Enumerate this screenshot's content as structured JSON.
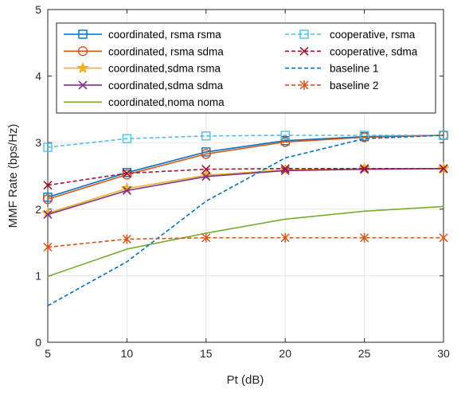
{
  "chart_data": {
    "type": "line",
    "xlabel": "Pt (dB)",
    "ylabel": "MMF Rate (bps/Hz)",
    "xlim": [
      5,
      30
    ],
    "ylim": [
      0,
      5
    ],
    "xticks": [
      5,
      10,
      15,
      20,
      25,
      30
    ],
    "yticks": [
      0,
      1,
      2,
      3,
      4,
      5
    ],
    "grid": true,
    "legend_placement": "top, two columns",
    "x": [
      5,
      10,
      15,
      20,
      25,
      30
    ],
    "series": [
      {
        "name": "coordinated, rsma rsma",
        "values": [
          2.18,
          2.55,
          2.86,
          3.03,
          3.09,
          3.11
        ],
        "color": "#0072BD",
        "dash": "solid",
        "marker": "square"
      },
      {
        "name": "coordinated, rsma sdma",
        "values": [
          2.15,
          2.52,
          2.83,
          3.01,
          3.08,
          3.11
        ],
        "color": "#D95319",
        "dash": "solid",
        "marker": "circle"
      },
      {
        "name": "coordinated,sdma rsma",
        "values": [
          1.94,
          2.31,
          2.51,
          2.59,
          2.61,
          2.61
        ],
        "color": "#EDB120",
        "dash": "solid",
        "marker": "star"
      },
      {
        "name": "coordinated,sdma sdma",
        "values": [
          1.92,
          2.28,
          2.49,
          2.58,
          2.6,
          2.61
        ],
        "color": "#7E2F8E",
        "dash": "solid",
        "marker": "x"
      },
      {
        "name": "coordinated,noma noma",
        "values": [
          0.99,
          1.4,
          1.64,
          1.85,
          1.97,
          2.04
        ],
        "color": "#77AC30",
        "dash": "solid",
        "marker": "none"
      },
      {
        "name": "cooperative, rsma",
        "values": [
          2.93,
          3.06,
          3.1,
          3.11,
          3.11,
          3.11
        ],
        "color": "#4DBEEE",
        "dash": "dashed",
        "marker": "square"
      },
      {
        "name": "cooperative, sdma",
        "values": [
          2.36,
          2.54,
          2.6,
          2.61,
          2.61,
          2.61
        ],
        "color": "#A2142F",
        "dash": "dashed",
        "marker": "x"
      },
      {
        "name": "baseline 1",
        "values": [
          0.55,
          1.21,
          2.12,
          2.77,
          3.06,
          3.11
        ],
        "color": "#0072BD",
        "dash": "dashed",
        "marker": "none"
      },
      {
        "name": "baseline 2",
        "values": [
          1.43,
          1.55,
          1.57,
          1.57,
          1.57,
          1.57
        ],
        "color": "#D95319",
        "dash": "dashed",
        "marker": "asterisk"
      }
    ]
  }
}
